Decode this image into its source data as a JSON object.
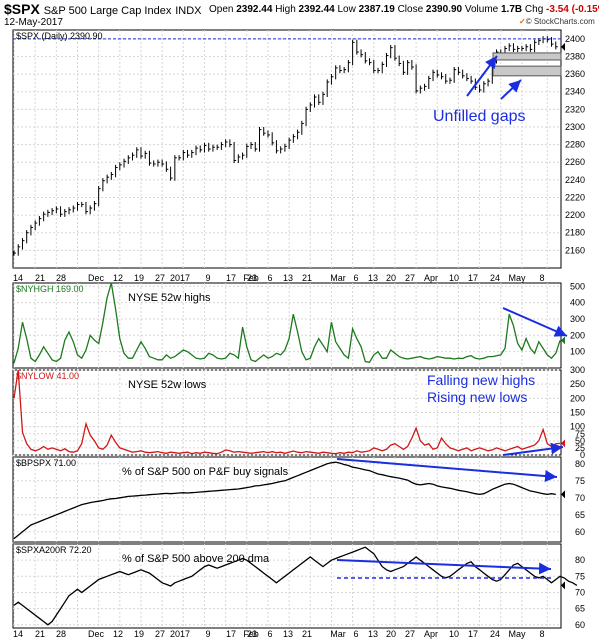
{
  "header": {
    "symbol": "$SPX",
    "description": "S&P 500 Large Cap Index",
    "exchange": "INDX",
    "date": "12-May-2017",
    "open_label": "Open",
    "open": "2392.44",
    "high_label": "High",
    "high": "2392.44",
    "low_label": "Low",
    "low": "2387.19",
    "close_label": "Close",
    "close": "2390.90",
    "volume_label": "Volume",
    "volume": "1.7B",
    "chg_label": "Chg",
    "chg": "-3.54 (-0.15%)",
    "credit": "© StockCharts.com"
  },
  "colors": {
    "blue": "#1a2ee0",
    "green": "#1d7a1d",
    "red": "#d01818",
    "black": "#000000",
    "grid": "#d6d6d6"
  },
  "chart_data": [
    {
      "panel": "main",
      "type": "line",
      "label": "$SPX (Daily) 2390.90",
      "ylim": [
        2140,
        2410
      ],
      "yticks": [
        2160,
        2180,
        2200,
        2220,
        2240,
        2260,
        2280,
        2300,
        2320,
        2340,
        2360,
        2380,
        2400
      ],
      "last_value": 2390.9,
      "series": [
        {
          "values": [
            2157,
            2164,
            2171,
            2180,
            2186,
            2191,
            2196,
            2201,
            2203,
            2205,
            2207,
            2201,
            2204,
            2206,
            2208,
            2212,
            2212,
            2204,
            2208,
            2213,
            2230,
            2239,
            2243,
            2246,
            2254,
            2257,
            2261,
            2265,
            2268,
            2274,
            2267,
            2270,
            2259,
            2258,
            2260,
            2258,
            2252,
            2242,
            2265,
            2265,
            2271,
            2268,
            2271,
            2276,
            2274,
            2279,
            2275,
            2277,
            2277,
            2280,
            2283,
            2280,
            2262,
            2266,
            2268,
            2278,
            2280,
            2275,
            2297,
            2293,
            2291,
            2282,
            2273,
            2275,
            2278,
            2285,
            2289,
            2294,
            2304,
            2320,
            2325,
            2334,
            2328,
            2337,
            2351,
            2357,
            2367,
            2364,
            2365,
            2373,
            2396,
            2385,
            2382,
            2375,
            2373,
            2364,
            2364,
            2371,
            2381,
            2390,
            2378,
            2372,
            2362,
            2373,
            2368,
            2341,
            2344,
            2346,
            2355,
            2362,
            2359,
            2357,
            2352,
            2353,
            2365,
            2362,
            2358,
            2355,
            2352,
            2345,
            2342,
            2349,
            2352,
            2375,
            2385,
            2384,
            2389,
            2392,
            2388,
            2389,
            2389,
            2391,
            2388,
            2396,
            2398,
            2400,
            2399,
            2394,
            2391
          ]
        }
      ],
      "annotations": [
        "Unfilled gaps"
      ],
      "gap_zones": [
        [
          2376,
          2384
        ],
        [
          2358,
          2369
        ]
      ]
    },
    {
      "panel": "nyhgh",
      "type": "line",
      "label": "$NYHGH 169.00",
      "title": "NYSE 52w highs",
      "ylim": [
        0,
        520
      ],
      "yticks": [
        100,
        200,
        300,
        400,
        500
      ],
      "last_value": 169,
      "series": [
        {
          "values": [
            30,
            120,
            280,
            180,
            60,
            40,
            80,
            130,
            90,
            50,
            40,
            60,
            170,
            220,
            160,
            80,
            60,
            110,
            200,
            170,
            150,
            280,
            430,
            520,
            360,
            180,
            90,
            60,
            60,
            110,
            160,
            120,
            70,
            60,
            50,
            50,
            80,
            60,
            70,
            90,
            110,
            100,
            80,
            60,
            55,
            60,
            90,
            80,
            60,
            55,
            60,
            90,
            80,
            60,
            250,
            130,
            50,
            40,
            60,
            80,
            60,
            70,
            90,
            80,
            110,
            180,
            330,
            220,
            100,
            50,
            60,
            130,
            180,
            140,
            100,
            280,
            160,
            120,
            80,
            60,
            240,
            180,
            130,
            40,
            35,
            80,
            100,
            60,
            60,
            110,
            90,
            70,
            60,
            55,
            60,
            65,
            70,
            60,
            55,
            60,
            70,
            65,
            60,
            60,
            55,
            60,
            58,
            70,
            75,
            60,
            55,
            60,
            70,
            70,
            75,
            80,
            120,
            330,
            260,
            150,
            110,
            180,
            120,
            90,
            160,
            120,
            80,
            60,
            90,
            169
          ]
        }
      ],
      "annotations": [
        "Falling new highs"
      ]
    },
    {
      "panel": "nylow",
      "type": "line",
      "label": "$NYLOW 41.00",
      "title": "NYSE 52w lows",
      "ylim": [
        0,
        300
      ],
      "yticks": [
        0,
        25,
        50,
        75,
        100,
        150,
        200,
        250,
        300
      ],
      "last_value": 41,
      "series": [
        {
          "values": [
            200,
            300,
            80,
            40,
            20,
            15,
            20,
            30,
            20,
            25,
            20,
            15,
            22,
            12,
            10,
            15,
            40,
            110,
            70,
            50,
            25,
            20,
            35,
            70,
            45,
            25,
            20,
            15,
            10,
            12,
            15,
            10,
            8,
            10,
            12,
            8,
            6,
            10,
            8,
            6,
            8,
            10,
            5,
            8,
            6,
            10,
            8,
            6,
            5,
            10,
            18,
            15,
            10,
            12,
            10,
            8,
            6,
            8,
            10,
            12,
            8,
            12,
            8,
            10,
            6,
            10,
            14,
            10,
            8,
            12,
            10,
            8,
            6,
            10,
            8,
            6,
            5,
            8,
            6,
            10,
            8,
            15,
            10,
            12,
            15,
            25,
            20,
            15,
            20,
            35,
            40,
            30,
            20,
            30,
            60,
            95,
            50,
            35,
            40,
            20,
            25,
            60,
            40,
            25,
            20,
            15,
            20,
            25,
            15,
            20,
            25,
            20,
            15,
            18,
            25,
            20,
            15,
            20,
            25,
            30,
            20,
            25,
            30,
            35,
            50,
            90,
            40,
            30,
            40,
            41
          ]
        }
      ],
      "annotations": [
        "Rising new lows"
      ]
    },
    {
      "panel": "bpspx",
      "type": "line",
      "label": "$BPSPX 71.00",
      "title": "% of S&P 500 on P&F buy signals",
      "ylim": [
        57,
        82
      ],
      "yticks": [
        60,
        65,
        70,
        75,
        80
      ],
      "last_value": 71,
      "series": [
        {
          "values": [
            58,
            59,
            60,
            61,
            62,
            62.5,
            63,
            63.5,
            64,
            64.5,
            65,
            65.5,
            66,
            66.5,
            67,
            67.5,
            68,
            68.3,
            68.6,
            68.8,
            69,
            69.2,
            69.5,
            69.7,
            69.8,
            70,
            70.2,
            70.4,
            70.5,
            70.6,
            70.7,
            70.8,
            70.9,
            71,
            71.1,
            71.2,
            71.3,
            71.2,
            71.3,
            71.4,
            71.5,
            71.4,
            71.5,
            71.6,
            71.7,
            71.8,
            71.9,
            72,
            72.1,
            72.2,
            72.3,
            72.4,
            72.5,
            72.6,
            72.8,
            73,
            73.2,
            73.5,
            73.6,
            73.8,
            74,
            74.2,
            74.5,
            74.8,
            75,
            75.5,
            76,
            76.5,
            77,
            77.5,
            78,
            78.5,
            79,
            79.5,
            80,
            80.3,
            80.5,
            80.2,
            79.8,
            79.5,
            79,
            78.8,
            78.5,
            78.2,
            78,
            77.5,
            77,
            76.8,
            76.5,
            76.2,
            76,
            75.8,
            75.5,
            75.2,
            74.5,
            74,
            73.8,
            74,
            74.2,
            74,
            73.5,
            73.2,
            73,
            72.8,
            72.5,
            72.2,
            72,
            71.8,
            71.5,
            71.2,
            71,
            71.2,
            71.8,
            72.5,
            73,
            73.5,
            74,
            74.2,
            74,
            73.5,
            73,
            72.5,
            72,
            71.8,
            71.5,
            71.2,
            71,
            71.2,
            71
          ]
        }
      ]
    },
    {
      "panel": "spxa200r",
      "type": "line",
      "label": "$SPXA200R 72.20",
      "title": "% of S&P 500 above 200 dma",
      "ylim": [
        59,
        85
      ],
      "yticks": [
        60,
        65,
        70,
        75,
        80
      ],
      "last_value": 72.2,
      "series": [
        {
          "values": [
            66,
            67,
            66,
            65,
            64,
            63,
            62,
            61,
            60,
            61,
            63,
            65,
            67,
            69,
            70,
            71,
            70,
            71,
            72,
            73,
            74,
            74.5,
            75,
            75.5,
            76,
            76.5,
            76,
            75.5,
            76,
            76.5,
            77,
            76.5,
            76,
            75,
            74,
            73,
            72.5,
            72,
            73,
            73.5,
            74,
            74.5,
            75,
            76,
            77,
            78,
            78.5,
            78,
            77.5,
            78,
            78.5,
            79,
            79.5,
            80,
            80.5,
            80,
            79,
            78,
            77,
            76,
            75,
            74,
            73,
            74,
            75,
            76,
            77,
            78,
            79,
            80,
            81,
            80,
            79,
            78,
            79,
            80,
            80.5,
            81,
            81.5,
            82,
            82.5,
            83,
            83.5,
            84,
            83,
            82,
            80,
            78,
            77,
            76.5,
            77,
            77.5,
            78,
            79,
            80,
            81,
            80,
            79,
            78,
            77,
            76,
            75,
            74.5,
            75,
            76,
            77,
            78,
            79,
            79.5,
            78,
            77,
            76,
            75,
            74,
            73.5,
            74,
            75.5,
            77,
            78.5,
            79,
            78,
            77,
            76,
            75,
            74.5,
            75,
            74,
            73,
            74,
            75,
            74.5,
            73.5,
            73,
            72.2
          ]
        }
      ]
    }
  ],
  "x_axis_labels": [
    "14",
    "21",
    "28",
    "Dec",
    "12",
    "19",
    "27",
    "2017",
    "9",
    "17",
    "23",
    "Feb",
    "6",
    "13",
    "21",
    "Mar",
    "6",
    "13",
    "20",
    "27",
    "Apr",
    "10",
    "17",
    "24",
    "May",
    "8"
  ]
}
